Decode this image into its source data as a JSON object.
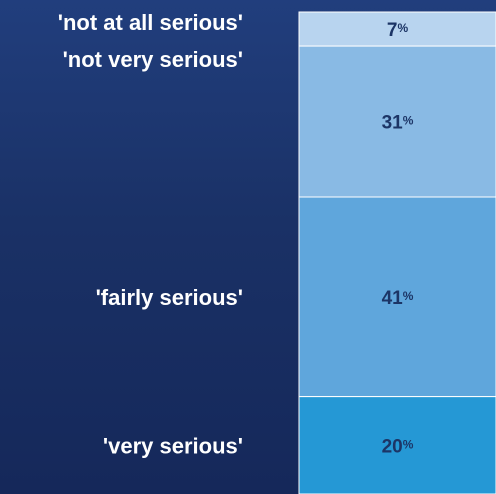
{
  "chart_data": {
    "type": "bar",
    "stacked": true,
    "orientation": "vertical",
    "categories": [
      "'not at all serious'",
      "'not very serious'",
      "'fairly serious'",
      "'very serious'"
    ],
    "values": [
      7,
      31,
      41,
      20
    ],
    "value_labels": [
      "7",
      "31",
      "41",
      "20"
    ],
    "unit": "%",
    "colors": [
      "#b8d4ef",
      "#89bae4",
      "#5fa6dc",
      "#2598d5"
    ],
    "label_color": "#1c3566",
    "title": "",
    "xlabel": "",
    "ylabel": ""
  }
}
